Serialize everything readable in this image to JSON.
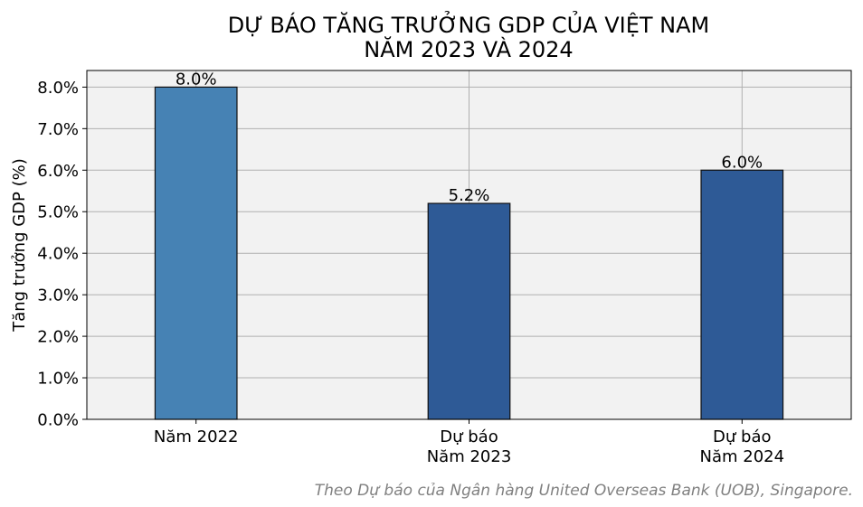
{
  "chart_data": {
    "type": "bar",
    "title": [
      "DỰ BÁO TĂNG TRƯỞNG GDP CỦA VIỆT NAM",
      "NĂM 2023 VÀ 2024"
    ],
    "ylabel": "Tăng trưởng GDP (%)",
    "xlabel": "",
    "ylim": [
      0,
      8.4
    ],
    "yticks": [
      0,
      1,
      2,
      3,
      4,
      5,
      6,
      7,
      8
    ],
    "ytick_labels": [
      "0.0%",
      "1.0%",
      "2.0%",
      "3.0%",
      "4.0%",
      "5.0%",
      "6.0%",
      "7.0%",
      "8.0%"
    ],
    "categories": [
      [
        "Năm 2022"
      ],
      [
        "Dự báo",
        "Năm 2023"
      ],
      [
        "Dự báo",
        "Năm 2024"
      ]
    ],
    "values": [
      8.0,
      5.2,
      6.0
    ],
    "data_labels": [
      "8.0%",
      "5.2%",
      "6.0%"
    ],
    "colors": [
      "#4682b4",
      "#2e5a96",
      "#2e5a96"
    ],
    "grid": true,
    "plot_background": "#f2f2f2",
    "source": "Theo Dự báo của Ngân hàng United Overseas Bank (UOB), Singapore."
  }
}
